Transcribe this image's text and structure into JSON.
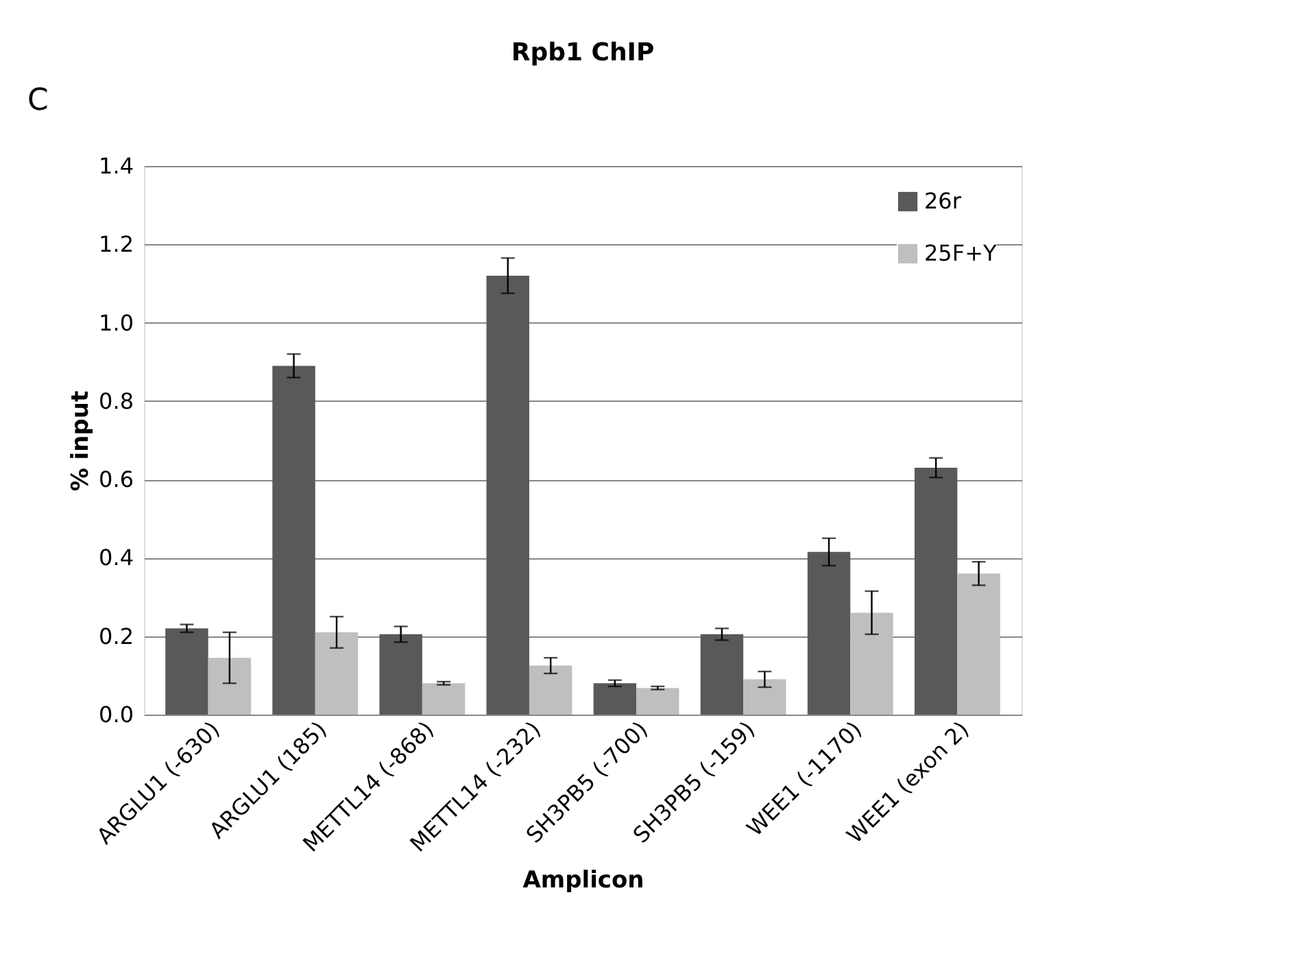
{
  "chart_data": {
    "type": "bar",
    "title": "Rpb1 ChIP",
    "xlabel": "Amplicon",
    "ylabel": "% input",
    "categories": [
      "ARGLU1 (-630)",
      "ARGLU1 (185)",
      "METTL14 (-868)",
      "METTL14 (-232)",
      "SH3PB5 (-700)",
      "SH3PB5 (-159)",
      "WEE1 (-1170)",
      "WEE1 (exon 2)"
    ],
    "series": [
      {
        "name": "26r",
        "color": "#595959",
        "values": [
          0.22,
          0.89,
          0.205,
          1.12,
          0.08,
          0.205,
          0.415,
          0.63
        ],
        "errors": [
          0.01,
          0.03,
          0.02,
          0.045,
          0.008,
          0.015,
          0.035,
          0.025
        ]
      },
      {
        "name": "25F+Y",
        "color": "#bfbfbf",
        "values": [
          0.145,
          0.21,
          0.08,
          0.125,
          0.068,
          0.09,
          0.26,
          0.36
        ],
        "errors": [
          0.065,
          0.04,
          0.004,
          0.02,
          0.004,
          0.02,
          0.055,
          0.03
        ]
      }
    ],
    "ylim": [
      0,
      1.4
    ],
    "yticks": [
      {
        "value": 0,
        "label": "0.0"
      },
      {
        "value": 0.2,
        "label": "0.2"
      },
      {
        "value": 0.4,
        "label": "0.4"
      },
      {
        "value": 0.6,
        "label": "0.6"
      },
      {
        "value": 0.8,
        "label": "0.8"
      },
      {
        "value": 1.0,
        "label": "1.0"
      },
      {
        "value": 1.2,
        "label": "1.2"
      },
      {
        "value": 1.4,
        "label": "1.4"
      }
    ],
    "grid": "y",
    "legend": "top right",
    "annotations": [
      "C"
    ]
  }
}
